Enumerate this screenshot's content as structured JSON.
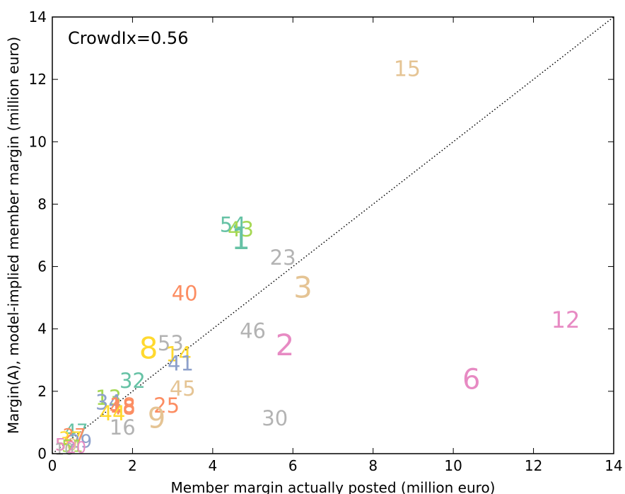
{
  "chart_data": {
    "type": "scatter",
    "title": "",
    "xlabel": "Member margin actually posted (million euro)",
    "ylabel": "Margin(A), model-implied member margin (million euro)",
    "xlim": [
      0,
      14
    ],
    "ylim": [
      0,
      14
    ],
    "xticks": [
      "0",
      "2",
      "4",
      "6",
      "8",
      "10",
      "12",
      "14"
    ],
    "yticks": [
      "0",
      "2",
      "4",
      "6",
      "8",
      "10",
      "12",
      "14"
    ],
    "annotation": "CrowdIx=0.56",
    "reference_line": "y = x (dotted)",
    "grid": false,
    "points": [
      {
        "label": "15",
        "x": 8.85,
        "y": 12.35,
        "color": "#e5c494",
        "size": 30
      },
      {
        "label": "12",
        "x": 12.8,
        "y": 4.3,
        "color": "#e78ac3",
        "size": 32
      },
      {
        "label": "6",
        "x": 10.45,
        "y": 2.4,
        "color": "#e78ac3",
        "size": 40
      },
      {
        "label": "54",
        "x": 4.5,
        "y": 7.35,
        "color": "#66c2a5",
        "size": 29
      },
      {
        "label": "43",
        "x": 4.7,
        "y": 7.2,
        "color": "#a6d854",
        "size": 29
      },
      {
        "label": "1",
        "x": 4.7,
        "y": 6.9,
        "color": "#66c2a5",
        "size": 42
      },
      {
        "label": "23",
        "x": 5.75,
        "y": 6.3,
        "color": "#b3b3b3",
        "size": 29
      },
      {
        "label": "3",
        "x": 6.25,
        "y": 5.35,
        "color": "#e5c494",
        "size": 42
      },
      {
        "label": "40",
        "x": 3.3,
        "y": 5.15,
        "color": "#fc8d62",
        "size": 29
      },
      {
        "label": "46",
        "x": 5.0,
        "y": 3.95,
        "color": "#b3b3b3",
        "size": 29
      },
      {
        "label": "2",
        "x": 5.8,
        "y": 3.5,
        "color": "#e78ac3",
        "size": 42
      },
      {
        "label": "8",
        "x": 2.4,
        "y": 3.4,
        "color": "#ffd92f",
        "size": 42
      },
      {
        "label": "53",
        "x": 2.95,
        "y": 3.55,
        "color": "#b3b3b3",
        "size": 29
      },
      {
        "label": "14",
        "x": 3.15,
        "y": 3.2,
        "color": "#ffd92f",
        "size": 29
      },
      {
        "label": "41",
        "x": 3.2,
        "y": 2.9,
        "color": "#8da0cb",
        "size": 29
      },
      {
        "label": "32",
        "x": 2.0,
        "y": 2.35,
        "color": "#66c2a5",
        "size": 29
      },
      {
        "label": "45",
        "x": 3.25,
        "y": 2.1,
        "color": "#e5c494",
        "size": 29
      },
      {
        "label": "13",
        "x": 1.4,
        "y": 1.8,
        "color": "#a6d854",
        "size": 29
      },
      {
        "label": "34",
        "x": 1.4,
        "y": 1.65,
        "color": "#8da0cb",
        "size": 29
      },
      {
        "label": "18",
        "x": 1.75,
        "y": 1.55,
        "color": "#fc8d62",
        "size": 29
      },
      {
        "label": "48",
        "x": 1.75,
        "y": 1.5,
        "color": "#fc8d62",
        "size": 29
      },
      {
        "label": "25",
        "x": 2.85,
        "y": 1.55,
        "color": "#fc8d62",
        "size": 29
      },
      {
        "label": "9",
        "x": 2.6,
        "y": 1.15,
        "color": "#e5c494",
        "size": 40
      },
      {
        "label": "44",
        "x": 1.5,
        "y": 1.3,
        "color": "#ffd92f",
        "size": 29
      },
      {
        "label": "16",
        "x": 1.75,
        "y": 0.85,
        "color": "#b3b3b3",
        "size": 29
      },
      {
        "label": "30",
        "x": 5.55,
        "y": 1.15,
        "color": "#b3b3b3",
        "size": 29
      },
      {
        "label": "47",
        "x": 0.6,
        "y": 0.75,
        "color": "#66c2a5",
        "size": 26
      },
      {
        "label": "27",
        "x": 0.55,
        "y": 0.6,
        "color": "#fc8d62",
        "size": 26
      },
      {
        "label": "37",
        "x": 0.45,
        "y": 0.5,
        "color": "#ffd92f",
        "size": 26
      },
      {
        "label": "29",
        "x": 0.7,
        "y": 0.4,
        "color": "#8da0cb",
        "size": 26
      },
      {
        "label": "50",
        "x": 0.35,
        "y": 0.3,
        "color": "#e5c494",
        "size": 24
      },
      {
        "label": "51",
        "x": 0.5,
        "y": 0.25,
        "color": "#a6d854",
        "size": 24
      },
      {
        "label": "5",
        "x": 0.2,
        "y": 0.3,
        "color": "#e78ac3",
        "size": 24
      },
      {
        "label": "10",
        "x": 0.3,
        "y": 0.15,
        "color": "#b3b3b3",
        "size": 22
      },
      {
        "label": "20",
        "x": 0.6,
        "y": 0.2,
        "color": "#e78ac3",
        "size": 22
      }
    ]
  }
}
